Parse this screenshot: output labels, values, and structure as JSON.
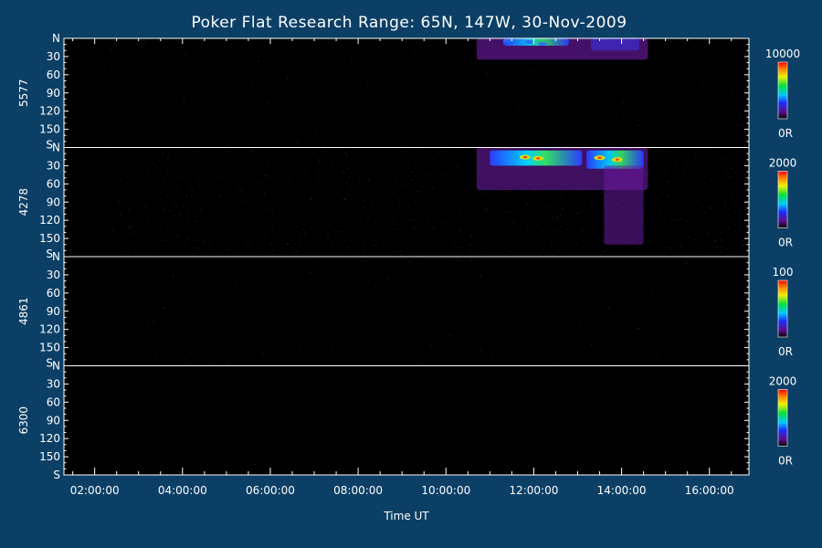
{
  "chart_data": {
    "type": "heatmap",
    "title": "Poker Flat Research Range: 65N, 147W, 30-Nov-2009",
    "xlabel": "Time UT",
    "x_tick_labels": [
      "02:00:00",
      "04:00:00",
      "06:00:00",
      "08:00:00",
      "10:00:00",
      "12:00:00",
      "14:00:00",
      "16:00:00"
    ],
    "x_tick_hours": [
      2,
      4,
      6,
      8,
      10,
      12,
      14,
      16
    ],
    "xlim_hours": [
      1.3,
      16.9
    ],
    "y_tick_labels": [
      "N",
      "30",
      "60",
      "90",
      "120",
      "150",
      "S"
    ],
    "y_tick_values": [
      0,
      30,
      60,
      90,
      120,
      150,
      180
    ],
    "ylim": [
      0,
      180
    ],
    "colors": {
      "background": "#0b3f66",
      "plot": "#000000",
      "foreground": "#ffffff"
    },
    "panels": [
      {
        "name": "5577",
        "colorbar_max": "10000",
        "colorbar_min": "0R",
        "features": [
          {
            "t0": 10.7,
            "t1": 14.6,
            "y0": 0,
            "y1": 35,
            "intensity": 0.35
          },
          {
            "t0": 11.3,
            "t1": 12.8,
            "y0": 0,
            "y1": 12,
            "intensity": 0.6
          },
          {
            "t0": 13.3,
            "t1": 14.4,
            "y0": 0,
            "y1": 20,
            "intensity": 0.4
          }
        ]
      },
      {
        "name": "4278",
        "colorbar_max": "2000",
        "colorbar_min": "0R",
        "features": [
          {
            "t0": 10.7,
            "t1": 14.6,
            "y0": 0,
            "y1": 70,
            "intensity": 0.3
          },
          {
            "t0": 11.0,
            "t1": 13.1,
            "y0": 5,
            "y1": 30,
            "intensity": 0.7
          },
          {
            "t0": 13.2,
            "t1": 14.5,
            "y0": 5,
            "y1": 35,
            "intensity": 0.65
          },
          {
            "t0": 13.6,
            "t1": 14.5,
            "y0": 30,
            "y1": 160,
            "intensity": 0.25
          }
        ]
      },
      {
        "name": "4861",
        "colorbar_max": "100",
        "colorbar_min": "0R",
        "features": []
      },
      {
        "name": "6300",
        "colorbar_max": "2000",
        "colorbar_min": "0R",
        "features": []
      }
    ]
  }
}
